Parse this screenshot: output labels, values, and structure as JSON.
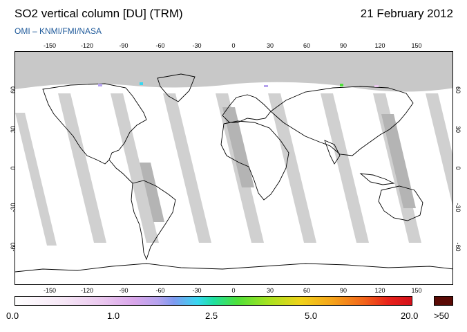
{
  "header": {
    "title": "SO2 vertical column [DU] (TRM)",
    "date": "21 February 2012",
    "source": "OMI  –  KNMI/FMI/NASA"
  },
  "map": {
    "projection": "equirectangular",
    "lon_ticks": [
      "-150",
      "-120",
      "-90",
      "-60",
      "-30",
      "0",
      "30",
      "60",
      "90",
      "120",
      "150"
    ],
    "lat_ticks": [
      "60",
      "30",
      "0",
      "-30",
      "-60"
    ],
    "colors": {
      "no_data": "#c8c8c8",
      "night_polar": "#c8c8c8",
      "orbit_gap": "#d0d0d0",
      "coastline": "#000000",
      "background": "#ffffff"
    }
  },
  "colorbar": {
    "labels": [
      "0.0",
      "1.0",
      "2.5",
      "5.0",
      "20.0",
      ">50"
    ],
    "overflow_color": "#5a0a05"
  }
}
